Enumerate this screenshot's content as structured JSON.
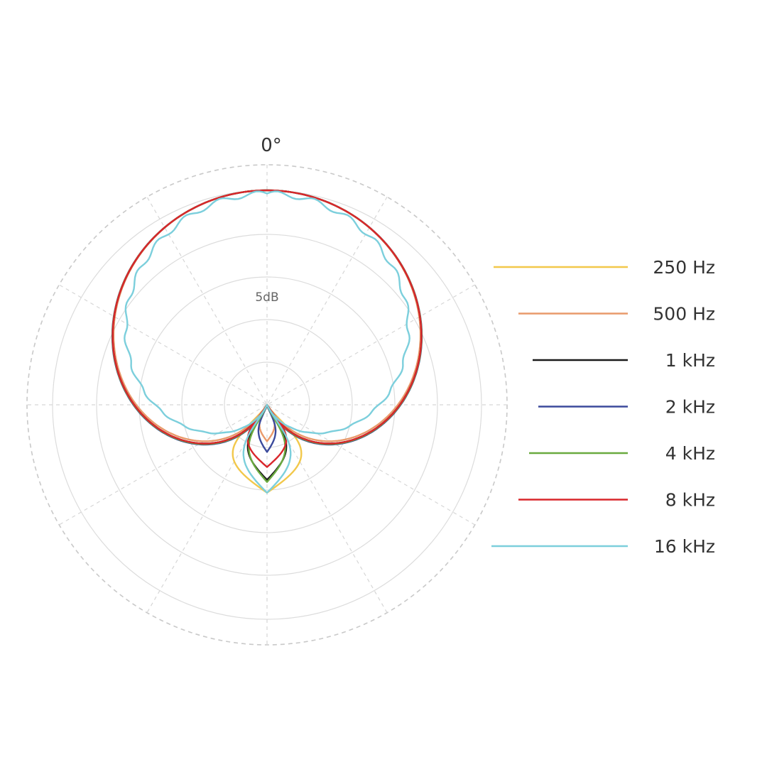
{
  "chart_data": {
    "type": "polar",
    "angle_label": "0°",
    "ring_label": "5dB",
    "grid": true,
    "legend_position": "right",
    "series": [
      {
        "name": "250 Hz",
        "color": "#f2c84b",
        "front": 1.0,
        "back": 0.41,
        "null_angle": 150,
        "back_width": 0.16
      },
      {
        "name": "500 Hz",
        "color": "#e99a6b",
        "front": 1.0,
        "back": 0.17,
        "null_angle": 145,
        "back_width": 0.035
      },
      {
        "name": "1 kHz",
        "color": "#1a1a1a",
        "front": 1.0,
        "back": 0.35,
        "null_angle": 149,
        "back_width": 0.09
      },
      {
        "name": "2 kHz",
        "color": "#3b4a9c",
        "front": 1.0,
        "back": 0.22,
        "null_angle": 151,
        "back_width": 0.04
      },
      {
        "name": "4 kHz",
        "color": "#6aaa3f",
        "front": 1.0,
        "back": 0.36,
        "null_angle": 150,
        "back_width": 0.085
      },
      {
        "name": "8 kHz",
        "color": "#d9262b",
        "front": 1.0,
        "back": 0.29,
        "null_angle": 149,
        "back_width": 0.09
      },
      {
        "name": "16 kHz",
        "color": "#7ccfdc",
        "front": 1.0,
        "back": 0.41,
        "null_angle": 155,
        "back_width": 0.11
      }
    ]
  }
}
